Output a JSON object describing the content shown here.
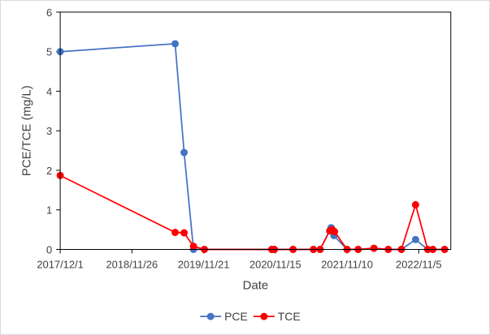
{
  "chart_data": {
    "type": "line",
    "xlabel": "Date",
    "ylabel": "PCE/TCE (mg/L)",
    "ylim": [
      0,
      6
    ],
    "yticks": [
      "0",
      "1",
      "2",
      "3",
      "4",
      "5",
      "6"
    ],
    "xlim": [
      "2017-12-01",
      "2023-04-15"
    ],
    "xticks": [
      {
        "date": "2017-12-01",
        "label": "2017/12/1"
      },
      {
        "date": "2018-11-26",
        "label": "2018/11/26"
      },
      {
        "date": "2019-11-21",
        "label": "2019/11/21"
      },
      {
        "date": "2020-11-15",
        "label": "2020/11/15"
      },
      {
        "date": "2021-11-10",
        "label": "2021/11/10"
      },
      {
        "date": "2022-11-05",
        "label": "2022/11/5"
      }
    ],
    "grid": false,
    "legend": "bottom",
    "series": [
      {
        "name": "PCE",
        "color": "#4472C4",
        "points": [
          {
            "x": "2017-12-01",
            "y": 5.0
          },
          {
            "x": "2019-07-01",
            "y": 5.2
          },
          {
            "x": "2019-08-15",
            "y": 2.45
          },
          {
            "x": "2019-10-01",
            "y": 0.0
          },
          {
            "x": "2019-11-25",
            "y": 0.0
          },
          {
            "x": "2020-10-28",
            "y": 0.0
          },
          {
            "x": "2020-11-10",
            "y": 0.0
          },
          {
            "x": "2021-02-12",
            "y": 0.0
          },
          {
            "x": "2021-05-25",
            "y": 0.0
          },
          {
            "x": "2021-06-28",
            "y": 0.0
          },
          {
            "x": "2021-08-22",
            "y": 0.55
          },
          {
            "x": "2021-09-05",
            "y": 0.35
          },
          {
            "x": "2021-11-10",
            "y": 0.0
          },
          {
            "x": "2022-01-05",
            "y": 0.0
          },
          {
            "x": "2022-03-25",
            "y": 0.03
          },
          {
            "x": "2022-06-05",
            "y": 0.0
          },
          {
            "x": "2022-08-10",
            "y": 0.0
          },
          {
            "x": "2022-10-20",
            "y": 0.25
          },
          {
            "x": "2022-12-20",
            "y": 0.0
          },
          {
            "x": "2023-01-15",
            "y": 0.0
          },
          {
            "x": "2023-03-15",
            "y": 0.0
          }
        ]
      },
      {
        "name": "TCE",
        "color": "#FF0000",
        "points": [
          {
            "x": "2017-12-01",
            "y": 1.87
          },
          {
            "x": "2019-07-01",
            "y": 0.43
          },
          {
            "x": "2019-08-15",
            "y": 0.42
          },
          {
            "x": "2019-10-01",
            "y": 0.08
          },
          {
            "x": "2019-11-25",
            "y": 0.0
          },
          {
            "x": "2020-10-28",
            "y": 0.0
          },
          {
            "x": "2020-11-10",
            "y": 0.0
          },
          {
            "x": "2021-02-12",
            "y": 0.0
          },
          {
            "x": "2021-05-25",
            "y": 0.0
          },
          {
            "x": "2021-06-28",
            "y": 0.0
          },
          {
            "x": "2021-08-15",
            "y": 0.47
          },
          {
            "x": "2021-08-28",
            "y": 0.5
          },
          {
            "x": "2021-09-08",
            "y": 0.45
          },
          {
            "x": "2021-11-10",
            "y": 0.0
          },
          {
            "x": "2022-01-05",
            "y": 0.0
          },
          {
            "x": "2022-03-25",
            "y": 0.03
          },
          {
            "x": "2022-06-05",
            "y": 0.0
          },
          {
            "x": "2022-08-10",
            "y": 0.0
          },
          {
            "x": "2022-10-20",
            "y": 1.13
          },
          {
            "x": "2022-12-20",
            "y": 0.0
          },
          {
            "x": "2023-01-15",
            "y": 0.0
          },
          {
            "x": "2023-03-15",
            "y": 0.0
          }
        ]
      }
    ]
  }
}
